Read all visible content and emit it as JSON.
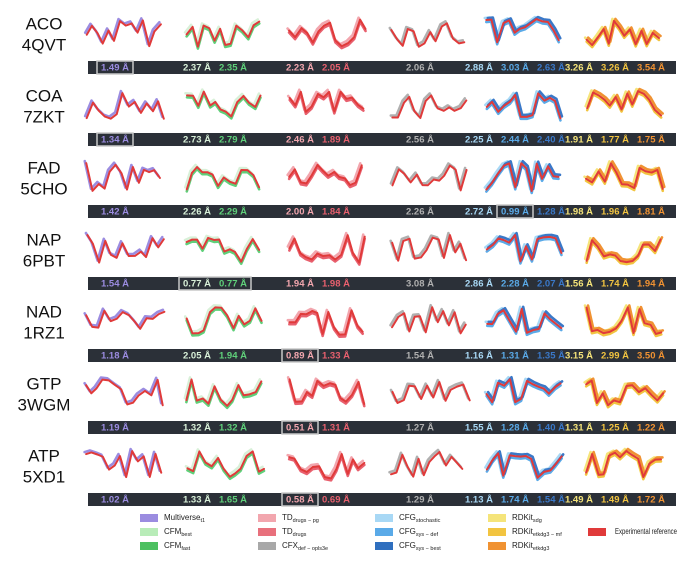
{
  "columns": [
    {
      "colors": [
        "#9b8ce0"
      ]
    },
    {
      "colors": [
        "#d8f0d8",
        "#5fd07a"
      ]
    },
    {
      "colors": [
        "#f2a6ae",
        "#e8606e"
      ]
    },
    {
      "colors": [
        "#b0b0b0"
      ]
    },
    {
      "colors": [
        "#a8d8f5",
        "#5aaae8",
        "#3a78c8"
      ]
    },
    {
      "colors": [
        "#f5e47a",
        "#f2c440",
        "#f09232"
      ]
    }
  ],
  "rows": [
    {
      "name": "ACO",
      "pdb": "4QVT",
      "values": [
        [
          "1.49 Å"
        ],
        [
          "2.37 Å",
          "2.35 Å"
        ],
        [
          "2.23 Å",
          "2.05 Å"
        ],
        [
          "2.06 Å"
        ],
        [
          "2.88 Å",
          "3.03 Å",
          "2.63 Å"
        ],
        [
          "3.26 Å",
          "3.26 Å",
          "3.54 Å"
        ]
      ],
      "boxed": {
        "column": 0,
        "items": [
          0
        ]
      }
    },
    {
      "name": "COA",
      "pdb": "7ZKT",
      "values": [
        [
          "1.34 Å"
        ],
        [
          "2.73 Å",
          "2.79 Å"
        ],
        [
          "2.46 Å",
          "1.89 Å"
        ],
        [
          "2.56 Å"
        ],
        [
          "2.25 Å",
          "2.44 Å",
          "2.40 Å"
        ],
        [
          "1.91 Å",
          "1.77 Å",
          "1.75 Å"
        ]
      ],
      "boxed": {
        "column": 0,
        "items": [
          0
        ]
      }
    },
    {
      "name": "FAD",
      "pdb": "5CHO",
      "values": [
        [
          "1.42 Å"
        ],
        [
          "2.26 Å",
          "2.29 Å"
        ],
        [
          "2.00 Å",
          "1.84 Å"
        ],
        [
          "2.26 Å"
        ],
        [
          "2.72 Å",
          "0.99 Å",
          "1.28 Å"
        ],
        [
          "1.98 Å",
          "1.96 Å",
          "1.81 Å"
        ]
      ],
      "boxed": {
        "column": 4,
        "items": [
          1
        ]
      }
    },
    {
      "name": "NAP",
      "pdb": "6PBT",
      "values": [
        [
          "1.54 Å"
        ],
        [
          "0.77 Å",
          "0.77 Å"
        ],
        [
          "1.94 Å",
          "1.98 Å"
        ],
        [
          "3.08 Å"
        ],
        [
          "2.86 Å",
          "2.28 Å",
          "2.07 Å"
        ],
        [
          "1.56 Å",
          "1.74 Å",
          "1.94 Å"
        ]
      ],
      "boxed": {
        "column": 1,
        "items": [
          0,
          1
        ]
      }
    },
    {
      "name": "NAD",
      "pdb": "1RZ1",
      "values": [
        [
          "1.18 Å"
        ],
        [
          "2.05 Å",
          "1.94 Å"
        ],
        [
          "0.89 Å",
          "1.33 Å"
        ],
        [
          "1.54 Å"
        ],
        [
          "1.16 Å",
          "1.31 Å",
          "1.35 Å"
        ],
        [
          "3.15 Å",
          "2.99 Å",
          "3.50 Å"
        ]
      ],
      "boxed": {
        "column": 2,
        "items": [
          0
        ]
      }
    },
    {
      "name": "GTP",
      "pdb": "3WGM",
      "values": [
        [
          "1.19 Å"
        ],
        [
          "1.32 Å",
          "1.32 Å"
        ],
        [
          "0.51 Å",
          "1.31 Å"
        ],
        [
          "1.27 Å"
        ],
        [
          "1.55 Å",
          "1.28 Å",
          "1.40 Å"
        ],
        [
          "1.31 Å",
          "1.25 Å",
          "1.22 Å"
        ]
      ],
      "boxed": {
        "column": 2,
        "items": [
          0
        ]
      }
    },
    {
      "name": "ATP",
      "pdb": "5XD1",
      "values": [
        [
          "1.02 Å"
        ],
        [
          "1.33 Å",
          "1.65 Å"
        ],
        [
          "0.58 Å",
          "0.69 Å"
        ],
        [
          "1.29 Å"
        ],
        [
          "1.13 Å",
          "1.74 Å",
          "1.54 Å"
        ],
        [
          "1.49 Å",
          "1.49 Å",
          "1.72 Å"
        ]
      ],
      "boxed": {
        "column": 2,
        "items": [
          0
        ]
      }
    }
  ],
  "legend": [
    {
      "label": "Multiverse",
      "sub": "t1",
      "color": "#9b8ce0"
    },
    {
      "label": "CFM",
      "sub": "best",
      "color": "#b8ecb8"
    },
    {
      "label": "CFM",
      "sub": "fast",
      "color": "#4cc060"
    },
    {
      "label": "TD",
      "sub": "drugs − pg",
      "color": "#f2a6ae"
    },
    {
      "label": "TD",
      "sub": "drugs",
      "color": "#e8707c"
    },
    {
      "label": "CFX",
      "sub": "def − opls3e",
      "color": "#a8a8a8"
    },
    {
      "label": "CFG",
      "sub": "stochastic",
      "color": "#a8d8f5"
    },
    {
      "label": "CFG",
      "sub": "sys − def",
      "color": "#5aaae8"
    },
    {
      "label": "CFG",
      "sub": "sys − best",
      "color": "#2f6fbf"
    },
    {
      "label": "RDKit",
      "sub": "sdg",
      "color": "#f5e47a"
    },
    {
      "label": "RDKit",
      "sub": "etkdg3 − mf",
      "color": "#f2c440"
    },
    {
      "label": "RDKit",
      "sub": "etkdg3",
      "color": "#f09232"
    }
  ],
  "reference": {
    "label": "Experimental reference",
    "color": "#e03a3a"
  }
}
